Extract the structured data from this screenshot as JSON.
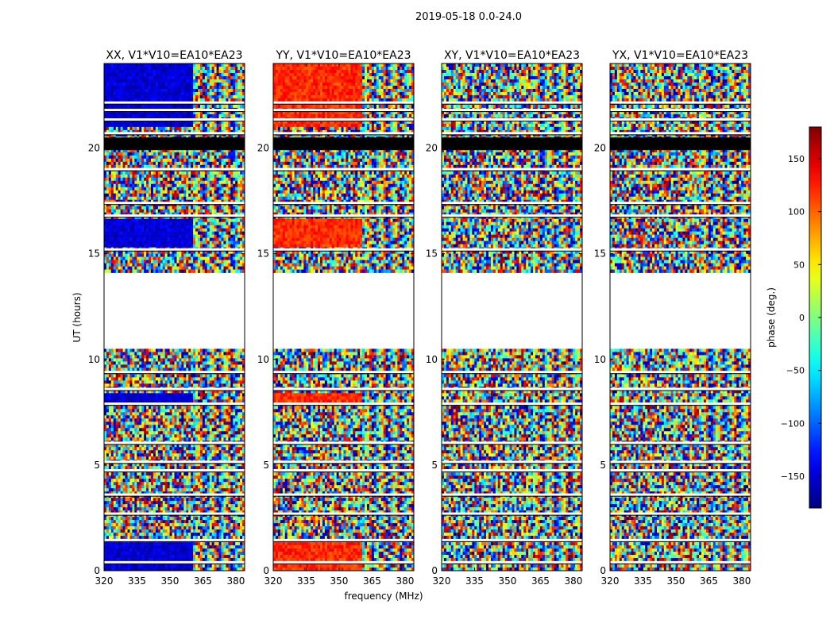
{
  "figure": {
    "suptitle": "2019-05-18 0.0-24.0"
  },
  "chart_data": {
    "type": "heatmap",
    "colormap": "jet",
    "panels": [
      {
        "title": "XX, V1*V10=EA10*EA23",
        "product": "XX",
        "coherent_phase_deg": -150
      },
      {
        "title": "YY, V1*V10=EA10*EA23",
        "product": "YY",
        "coherent_phase_deg": 120
      },
      {
        "title": "XY, V1*V10=EA10*EA23",
        "product": "XY",
        "coherent_phase_deg": null
      },
      {
        "title": "YX, V1*V10=EA10*EA23",
        "product": "YX",
        "coherent_phase_deg": null
      }
    ],
    "x": {
      "label": "frequency (MHz)",
      "range": [
        320,
        384
      ],
      "ticks": [
        320,
        335,
        350,
        365,
        380
      ],
      "tick_labels": [
        "320",
        "335",
        "350",
        "365",
        "380"
      ]
    },
    "y": {
      "label": "UT (hours)",
      "range": [
        0,
        24
      ],
      "ticks": [
        0,
        5,
        10,
        15,
        20
      ],
      "tick_labels": [
        "0",
        "5",
        "10",
        "15",
        "20"
      ]
    },
    "no_data_intervals_hours": [
      [
        10.5,
        14.1
      ]
    ],
    "flagged_bands_hours": [
      [
        19.9,
        20.5
      ]
    ],
    "blank_lines_hours": [
      0.4,
      1.45,
      2.7,
      3.6,
      4.75,
      5.15,
      6.05,
      7.9,
      8.6,
      9.4,
      15.2,
      16.8,
      17.4,
      19.0,
      20.7,
      21.35,
      21.8,
      22.15
    ],
    "colorbar": {
      "label": "phase (deg.)",
      "range": [
        -180,
        180
      ],
      "ticks": [
        150,
        100,
        50,
        0,
        -50,
        -100,
        -150
      ],
      "tick_labels": [
        "150",
        "100",
        "50",
        "0",
        "−50",
        "−100",
        "−150"
      ]
    }
  }
}
